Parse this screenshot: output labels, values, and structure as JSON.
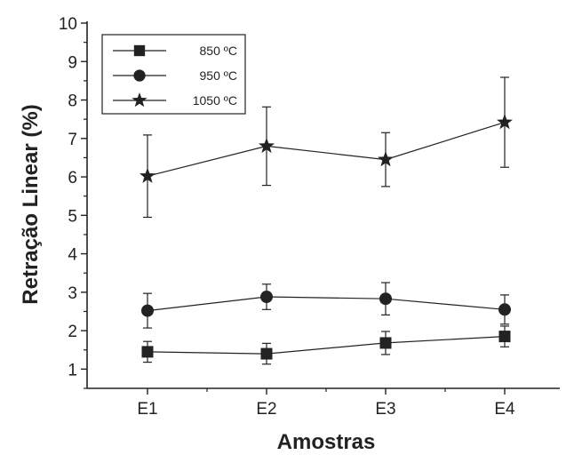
{
  "chart_data": {
    "type": "line",
    "xlabel": "Amostras",
    "ylabel": "Retração Linear (%)",
    "categories": [
      "E1",
      "E2",
      "E3",
      "E4"
    ],
    "ylim": [
      0.5,
      10
    ],
    "yticks": [
      "1",
      "2",
      "3",
      "4",
      "5",
      "6",
      "7",
      "8",
      "9",
      "10"
    ],
    "grid": false,
    "legend_position": "top-left",
    "series": [
      {
        "name": "850 ºC",
        "marker": "square",
        "color": "#222222",
        "values": [
          1.45,
          1.4,
          1.68,
          1.85
        ],
        "error": [
          0.27,
          0.27,
          0.3,
          0.27
        ]
      },
      {
        "name": "950 ºC",
        "marker": "circle",
        "color": "#222222",
        "values": [
          2.52,
          2.88,
          2.83,
          2.55
        ],
        "error": [
          0.45,
          0.33,
          0.42,
          0.38
        ]
      },
      {
        "name": "1050 ºC",
        "marker": "star",
        "color": "#222222",
        "values": [
          6.02,
          6.8,
          6.45,
          7.42
        ],
        "error": [
          1.07,
          1.02,
          0.7,
          1.17
        ]
      }
    ]
  }
}
